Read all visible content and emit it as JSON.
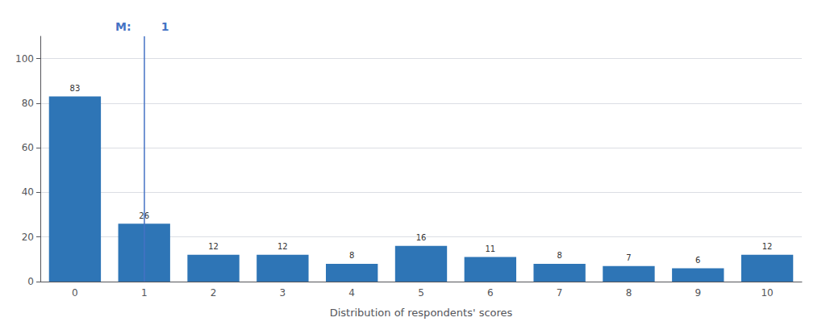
{
  "chart_data": {
    "type": "bar",
    "xlabel": "Distribution of respondents' scores",
    "categories": [
      "0",
      "1",
      "2",
      "3",
      "4",
      "5",
      "6",
      "7",
      "8",
      "9",
      "10"
    ],
    "values": [
      83,
      26,
      12,
      12,
      8,
      16,
      11,
      8,
      7,
      6,
      12
    ],
    "color": "#2E75B6",
    "ylim": [
      0,
      110
    ],
    "yticks": [
      0,
      20,
      40,
      60,
      80,
      100
    ],
    "grid": true,
    "data_labels": true,
    "annotations": [
      {
        "type": "vline",
        "x": "1",
        "color": "#4472C4",
        "text_left": "M:",
        "text_right": "1"
      }
    ]
  }
}
